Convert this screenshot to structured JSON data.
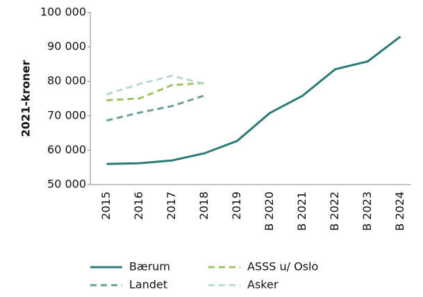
{
  "chart_data": {
    "type": "line",
    "y_label": "2021-kroner",
    "categories": [
      "2015",
      "2016",
      "2017",
      "2018",
      "2019",
      "B 2020",
      "B 2021",
      "B 2022",
      "B 2023",
      "B 2024"
    ],
    "series": [
      {
        "name": "Bærum",
        "color": "#2a7a78",
        "dashed": false,
        "values": [
          56000,
          56200,
          57000,
          59100,
          62700,
          70800,
          75800,
          83500,
          85800,
          93000
        ]
      },
      {
        "name": "ASSS u/ Oslo",
        "color": "#9bc45a",
        "dashed": true,
        "values": [
          74500,
          75000,
          78900,
          79500,
          null,
          null,
          null,
          null,
          null,
          null
        ]
      },
      {
        "name": "Landet",
        "color": "#6a9e9c",
        "dashed": true,
        "values": [
          68600,
          70900,
          72800,
          75900,
          null,
          null,
          null,
          null,
          null,
          null
        ]
      },
      {
        "name": "Asker",
        "color": "#b8d8d8",
        "dashed": true,
        "values": [
          76200,
          79200,
          81600,
          79300,
          null,
          null,
          null,
          null,
          null,
          null
        ]
      }
    ],
    "ylim": [
      50000,
      100000
    ],
    "yticks": [
      {
        "value": 50000,
        "label": "50 000"
      },
      {
        "value": 60000,
        "label": "60 000"
      },
      {
        "value": 70000,
        "label": "70 000"
      },
      {
        "value": 80000,
        "label": "80 000"
      },
      {
        "value": 90000,
        "label": "90 000"
      },
      {
        "value": 100000,
        "label": "100 000"
      }
    ]
  }
}
